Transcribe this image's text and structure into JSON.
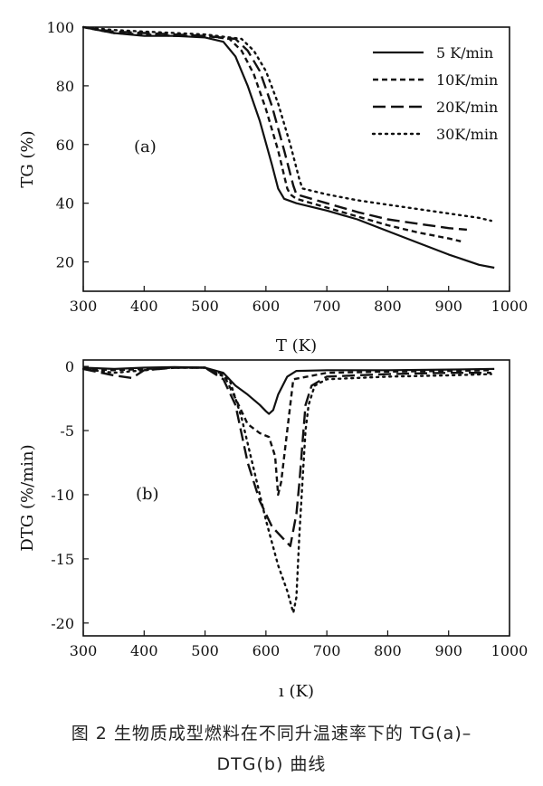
{
  "caption": {
    "line1": "图 2 生物质成型燃料在不同升温速率下的 TG(a)–",
    "line2": "DTG(b) 曲线"
  },
  "chart_data": [
    {
      "type": "line",
      "panel_label": "(a)",
      "xlabel": "T (K)",
      "ylabel": "TG  (%)",
      "xlim": [
        300,
        1000
      ],
      "ylim": [
        10,
        100
      ],
      "xticks": [
        "300",
        "400",
        "500",
        "600",
        "700",
        "800",
        "900",
        "1000"
      ],
      "yticks": [
        "20",
        "40",
        "60",
        "80",
        "100"
      ],
      "legend_position": "top-right",
      "series": [
        {
          "name": "5  K/min",
          "dash": "solid",
          "x": [
            300,
            350,
            400,
            450,
            500,
            530,
            550,
            570,
            590,
            610,
            620,
            630,
            650,
            700,
            750,
            800,
            850,
            900,
            950,
            975
          ],
          "y": [
            100,
            98,
            97,
            97,
            96.5,
            95,
            90,
            80,
            68,
            53,
            45,
            41.5,
            40,
            37.5,
            34.5,
            30.5,
            26.5,
            22.5,
            19,
            18
          ]
        },
        {
          "name": "10K/min",
          "dash": "short",
          "x": [
            300,
            350,
            400,
            450,
            500,
            540,
            560,
            580,
            600,
            620,
            635,
            640,
            650,
            700,
            750,
            800,
            850,
            900,
            920
          ],
          "y": [
            100,
            98,
            97.5,
            97,
            97,
            96,
            92,
            84,
            72,
            58,
            45,
            43,
            41.5,
            38.5,
            35.5,
            32.5,
            30,
            28,
            27
          ]
        },
        {
          "name": "20K/min",
          "dash": "long",
          "x": [
            300,
            350,
            400,
            450,
            500,
            550,
            570,
            590,
            610,
            630,
            645,
            650,
            700,
            750,
            800,
            850,
            900,
            930
          ],
          "y": [
            100,
            98.5,
            98,
            97.5,
            97,
            96,
            92,
            85,
            73,
            58,
            46,
            43,
            40,
            37,
            34.5,
            33,
            31.5,
            31
          ]
        },
        {
          "name": "30K/min",
          "dash": "dot",
          "x": [
            300,
            350,
            400,
            450,
            500,
            560,
            580,
            600,
            620,
            640,
            655,
            660,
            700,
            750,
            800,
            850,
            900,
            950,
            970
          ],
          "y": [
            100,
            99,
            98.5,
            98,
            97.5,
            96,
            92,
            85,
            74,
            60,
            48,
            45,
            43,
            41,
            39.5,
            38,
            36.5,
            35,
            34
          ]
        }
      ]
    },
    {
      "type": "line",
      "panel_label": "(b)",
      "xlabel": "ı (K)",
      "ylabel": "DTG  (%/min)",
      "xlim": [
        300,
        1000
      ],
      "ylim": [
        -21,
        0.5
      ],
      "xticks": [
        "300",
        "400",
        "500",
        "600",
        "700",
        "800",
        "900",
        "1000"
      ],
      "yticks": [
        "0",
        "-5",
        "-10",
        "-15",
        "-20"
      ],
      "series": [
        {
          "name": "5  K/min",
          "dash": "solid",
          "x": [
            300,
            350,
            400,
            450,
            500,
            530,
            550,
            570,
            590,
            600,
            605,
            612,
            620,
            635,
            650,
            700,
            800,
            900,
            975
          ],
          "y": [
            -0.1,
            -0.2,
            -0.1,
            -0.05,
            -0.1,
            -0.5,
            -1.5,
            -2.2,
            -3,
            -3.5,
            -3.7,
            -3.4,
            -2.2,
            -0.8,
            -0.35,
            -0.3,
            -0.3,
            -0.25,
            -0.2
          ]
        },
        {
          "name": "10K/min",
          "dash": "short",
          "x": [
            300,
            350,
            400,
            450,
            500,
            530,
            550,
            570,
            590,
            605,
            615,
            620,
            625,
            635,
            645,
            700,
            800,
            900,
            970
          ],
          "y": [
            -0.2,
            -0.3,
            -0.2,
            -0.1,
            -0.1,
            -0.6,
            -2.5,
            -4.5,
            -5.2,
            -5.5,
            -7,
            -10,
            -9,
            -5,
            -1,
            -0.5,
            -0.4,
            -0.35,
            -0.3
          ]
        },
        {
          "name": "20K/min",
          "dash": "long",
          "x": [
            300,
            350,
            380,
            400,
            450,
            500,
            530,
            550,
            570,
            590,
            610,
            630,
            640,
            650,
            655,
            660,
            665,
            675,
            700,
            800,
            900,
            970
          ],
          "y": [
            -0.2,
            -0.7,
            -0.9,
            -0.3,
            -0.1,
            -0.1,
            -1,
            -3,
            -7.5,
            -10.5,
            -12.5,
            -13.5,
            -14,
            -11.5,
            -9,
            -6,
            -3,
            -1.5,
            -0.8,
            -0.6,
            -0.5,
            -0.5
          ]
        },
        {
          "name": "30K/min",
          "dash": "dot",
          "x": [
            300,
            350,
            400,
            450,
            500,
            540,
            560,
            580,
            600,
            620,
            635,
            645,
            650,
            655,
            660,
            665,
            670,
            680,
            700,
            800,
            900,
            970
          ],
          "y": [
            -0.2,
            -0.5,
            -0.3,
            -0.1,
            -0.1,
            -1,
            -4,
            -8,
            -12,
            -15.5,
            -17.5,
            -19.2,
            -18,
            -13,
            -9,
            -5,
            -3,
            -1.5,
            -1,
            -0.8,
            -0.7,
            -0.6
          ]
        }
      ]
    }
  ]
}
